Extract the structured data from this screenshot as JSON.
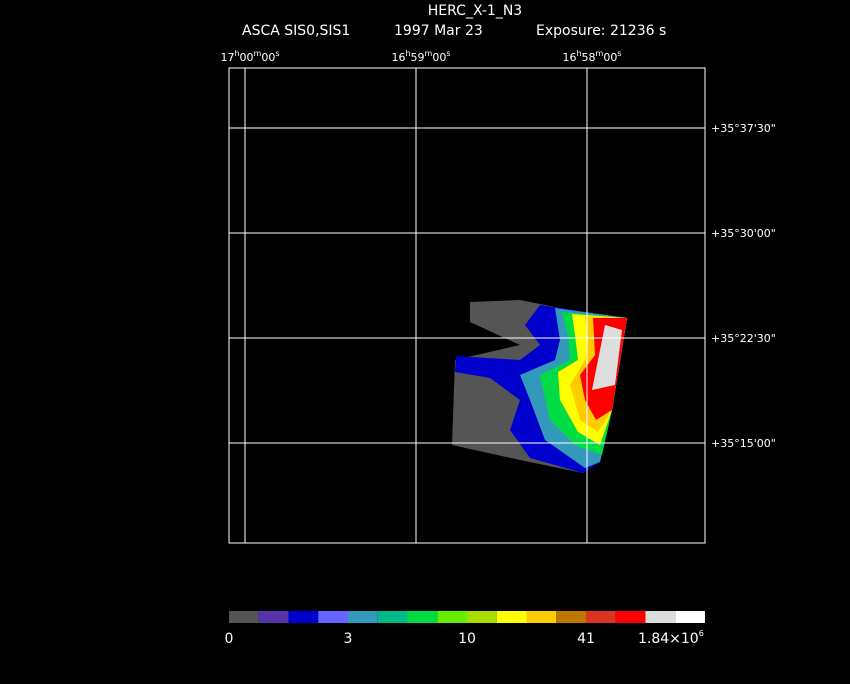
{
  "header": {
    "title": "HERC_X-1_N3",
    "instrument": "ASCA SIS0,SIS1",
    "date": "1997 Mar 23",
    "exposure": "Exposure: 21236 s"
  },
  "ra_labels": [
    [
      "17",
      "h",
      "00",
      "m",
      "00",
      "s"
    ],
    [
      "16",
      "h",
      "59",
      "m",
      "00",
      "s"
    ],
    [
      "16",
      "h",
      "58",
      "m",
      "00",
      "s"
    ]
  ],
  "dec_labels": [
    "+35°37'30\"",
    "+35°30'00\"",
    "+35°22'30\"",
    "+35°15'00\""
  ],
  "colorbar_labels": [
    "0",
    "3",
    "10",
    "41"
  ],
  "colorbar_max": {
    "mantissa": "1.84×10",
    "exponent": "6"
  }
}
